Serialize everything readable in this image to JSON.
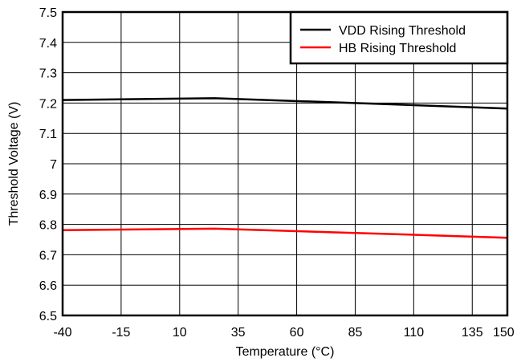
{
  "chart_data": {
    "type": "line",
    "title": "",
    "xlabel": "Temperature (°C)",
    "ylabel": "Threshold Voltage (V)",
    "xlim": [
      -40,
      150
    ],
    "ylim": [
      6.5,
      7.5
    ],
    "x_ticks": [
      -40,
      -15,
      10,
      35,
      60,
      85,
      110,
      135,
      150
    ],
    "y_ticks": [
      6.5,
      6.6,
      6.7,
      6.8,
      6.9,
      7,
      7.1,
      7.2,
      7.3,
      7.4,
      7.5
    ],
    "grid": true,
    "legend_position": "top-right",
    "series": [
      {
        "name": "VDD Rising Threshold",
        "color": "#000000",
        "x": [
          -40,
          25,
          85,
          150
        ],
        "y": [
          7.21,
          7.216,
          7.2,
          7.182
        ]
      },
      {
        "name": "HB Rising Threshold",
        "color": "#ff0000",
        "x": [
          -40,
          25,
          85,
          150
        ],
        "y": [
          6.781,
          6.786,
          6.772,
          6.756
        ]
      }
    ]
  }
}
